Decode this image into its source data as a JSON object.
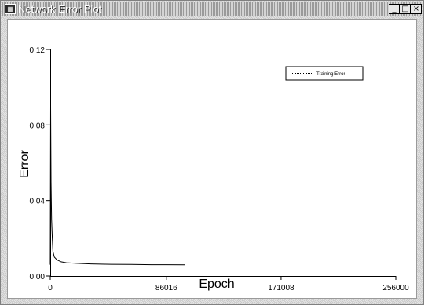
{
  "window": {
    "title": "Network Error Plot",
    "buttons": {
      "minimize": "_",
      "maximize": "□",
      "close": "×"
    }
  },
  "chart_data": {
    "type": "line",
    "xlabel": "Epoch",
    "ylabel": "Error",
    "xlim": [
      0,
      256000
    ],
    "ylim": [
      0,
      0.12
    ],
    "x_ticks": [
      {
        "value": 0,
        "label": "0"
      },
      {
        "value": 86016,
        "label": "86016"
      },
      {
        "value": 171008,
        "label": "171008"
      },
      {
        "value": 256000,
        "label": "256000"
      }
    ],
    "y_ticks": [
      {
        "value": 0,
        "label": "0.00"
      },
      {
        "value": 0.04,
        "label": "0.04"
      },
      {
        "value": 0.08,
        "label": "0.08"
      },
      {
        "value": 0.12,
        "label": "0.12"
      }
    ],
    "legend": {
      "position": "top-right",
      "label": "Training Error"
    },
    "series": [
      {
        "name": "Training Error",
        "color": "#000000",
        "x": [
          0,
          300,
          600,
          1000,
          1500,
          2000,
          3000,
          5000,
          8000,
          12000,
          20000,
          30000,
          45000,
          60000,
          75000,
          86000,
          100000
        ],
        "y": [
          0.006,
          0.09,
          0.05,
          0.03,
          0.02,
          0.013,
          0.01,
          0.0085,
          0.0075,
          0.007,
          0.0067,
          0.0064,
          0.0062,
          0.0061,
          0.006,
          0.006,
          0.0059
        ]
      }
    ]
  }
}
